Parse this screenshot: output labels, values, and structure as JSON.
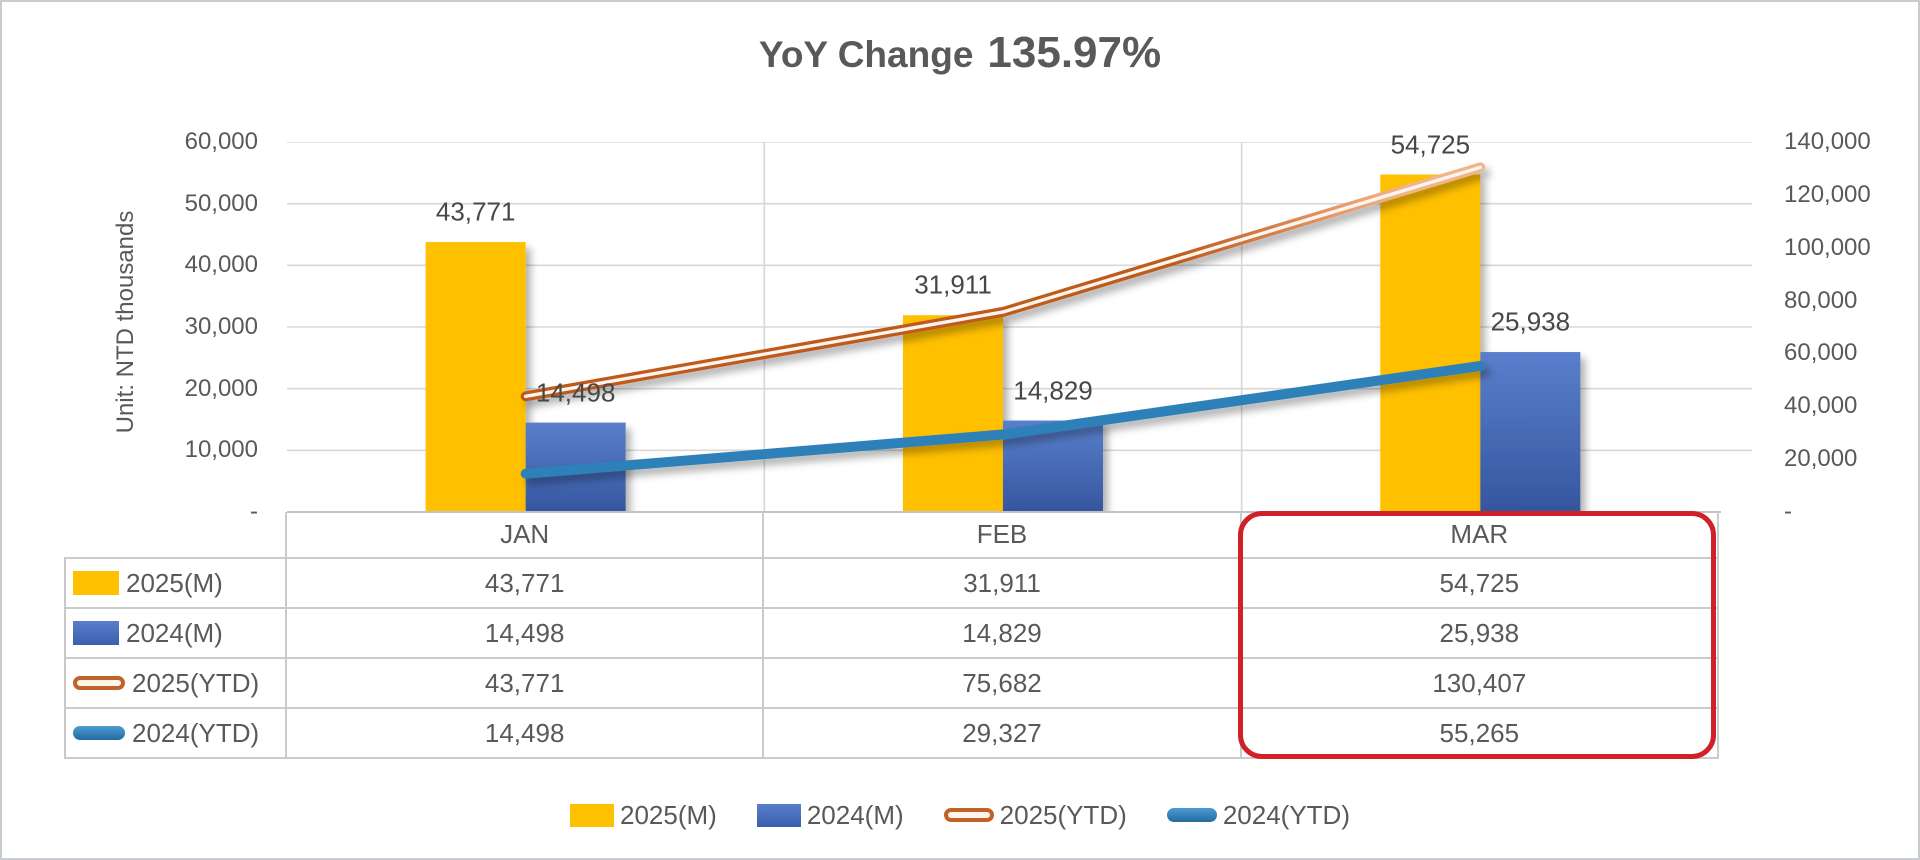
{
  "title": {
    "prefix": "YoY Change",
    "value": "135.97%"
  },
  "y_axis_title": "Unit: NTD thousands",
  "chart_data": {
    "type": "combo (clustered bar + line, dual axis)",
    "categories": [
      "JAN",
      "FEB",
      "MAR"
    ],
    "series": [
      {
        "name": "2025(M)",
        "chart": "bar",
        "axis": "left",
        "color": "#FFC000",
        "values": [
          43771,
          31911,
          54725
        ],
        "value_labels": [
          "43,771",
          "31,911",
          "54,725"
        ]
      },
      {
        "name": "2024(M)",
        "chart": "bar",
        "axis": "left",
        "color": "#4472C4",
        "color2": "#35569E",
        "values": [
          14498,
          14829,
          25938
        ],
        "value_labels": [
          "14,498",
          "14,829",
          "25,938"
        ]
      },
      {
        "name": "2025(YTD)",
        "chart": "line",
        "axis": "right",
        "color": "#BE5A1D",
        "color_end": "#F2B48C",
        "inner_stripe": "#FCF5EE",
        "values": [
          43771,
          75682,
          130407
        ],
        "value_labels": [
          "43,771",
          "75,682",
          "130,407"
        ]
      },
      {
        "name": "2024(YTD)",
        "chart": "line",
        "axis": "right",
        "color": "#2E80B9",
        "values": [
          14498,
          29327,
          55265
        ],
        "value_labels": [
          "14,498",
          "29,327",
          "55,265"
        ]
      }
    ],
    "left_axis": {
      "min": 0,
      "max": 60000,
      "step": 10000,
      "labels": [
        "-",
        "10,000",
        "20,000",
        "30,000",
        "40,000",
        "50,000",
        "60,000"
      ]
    },
    "right_axis": {
      "min": 0,
      "max": 140000,
      "step": 20000,
      "labels": [
        "-",
        "20,000",
        "40,000",
        "60,000",
        "80,000",
        "100,000",
        "120,000",
        "140,000"
      ]
    },
    "gridlines": true,
    "legend_position": "bottom",
    "data_table_shown": true,
    "highlighted_category": "MAR",
    "highlight_color": "#D02028"
  },
  "colors": {
    "text": "#595959",
    "data_label_text": "#474747",
    "gridline": "#D8D8D8",
    "table_border": "#CBCBCB",
    "background": "#FFFFFF",
    "page_border": "#C9CDD1"
  }
}
